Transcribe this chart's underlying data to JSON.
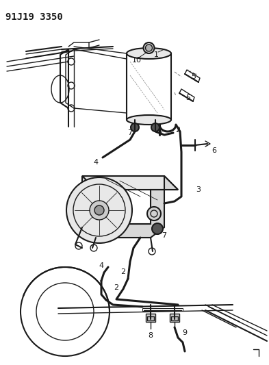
{
  "title_code": "91J19 3350",
  "bg_color": "#ffffff",
  "line_color": "#1a1a1a",
  "title_fontsize": 10,
  "fig_w": 3.93,
  "fig_h": 5.33,
  "dpi": 100
}
